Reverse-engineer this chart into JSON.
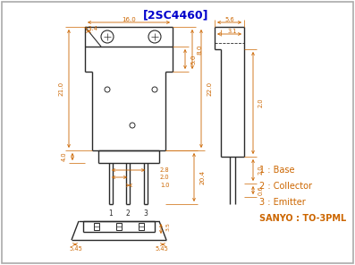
{
  "title": "[2SC4460]",
  "title_color": "#0000cc",
  "bg_color": "#ffffff",
  "line_color": "#2a2a2a",
  "dim_color": "#cc6600",
  "text_color": "#2a2a2a",
  "pin_names": [
    "Base",
    "Collector",
    "Emitter"
  ],
  "package": "SANYO : TO-3PML",
  "border_color": "#aaaaaa"
}
